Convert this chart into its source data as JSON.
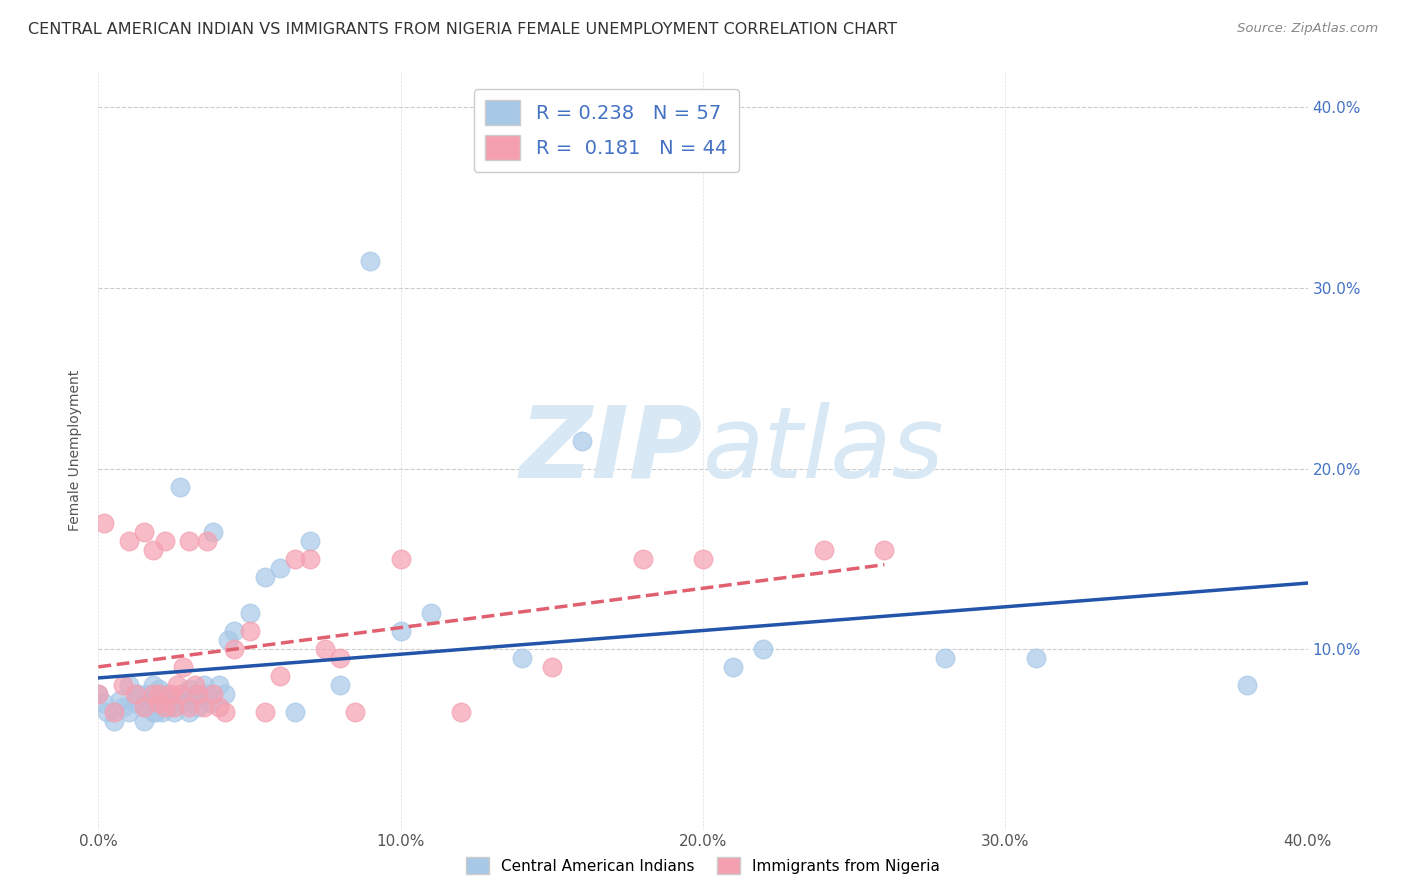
{
  "title": "CENTRAL AMERICAN INDIAN VS IMMIGRANTS FROM NIGERIA FEMALE UNEMPLOYMENT CORRELATION CHART",
  "source": "Source: ZipAtlas.com",
  "ylabel": "Female Unemployment",
  "xlim": [
    0.0,
    0.4
  ],
  "ylim": [
    0.0,
    0.42
  ],
  "x_ticks": [
    0.0,
    0.1,
    0.2,
    0.3,
    0.4
  ],
  "y_ticks": [
    0.1,
    0.2,
    0.3,
    0.4
  ],
  "x_tick_labels": [
    "0.0%",
    "10.0%",
    "20.0%",
    "30.0%",
    "40.0%"
  ],
  "y_tick_labels": [
    "10.0%",
    "20.0%",
    "30.0%",
    "40.0%"
  ],
  "legend1_R": "0.238",
  "legend1_N": "57",
  "legend2_R": "0.181",
  "legend2_N": "44",
  "blue_color": "#A8C8E8",
  "pink_color": "#F4A0B0",
  "blue_line_color": "#2255AA",
  "pink_line_color": "#E06070",
  "watermark_color": "#D8E8F4",
  "legend1_label": "Central American Indians",
  "legend2_label": "Immigrants from Nigeria",
  "blue_scatter_x": [
    0.0,
    0.002,
    0.003,
    0.005,
    0.007,
    0.008,
    0.01,
    0.01,
    0.012,
    0.013,
    0.015,
    0.015,
    0.016,
    0.017,
    0.018,
    0.018,
    0.019,
    0.02,
    0.02,
    0.021,
    0.022,
    0.022,
    0.023,
    0.024,
    0.025,
    0.026,
    0.027,
    0.028,
    0.03,
    0.03,
    0.031,
    0.032,
    0.033,
    0.035,
    0.036,
    0.037,
    0.038,
    0.04,
    0.042,
    0.043,
    0.045,
    0.05,
    0.055,
    0.06,
    0.065,
    0.07,
    0.08,
    0.09,
    0.1,
    0.11,
    0.14,
    0.16,
    0.21,
    0.22,
    0.28,
    0.31,
    0.38
  ],
  "blue_scatter_y": [
    0.075,
    0.07,
    0.065,
    0.06,
    0.072,
    0.068,
    0.08,
    0.065,
    0.07,
    0.075,
    0.06,
    0.068,
    0.075,
    0.072,
    0.065,
    0.08,
    0.065,
    0.07,
    0.078,
    0.065,
    0.07,
    0.075,
    0.068,
    0.07,
    0.065,
    0.072,
    0.19,
    0.07,
    0.065,
    0.078,
    0.072,
    0.075,
    0.068,
    0.08,
    0.075,
    0.07,
    0.165,
    0.08,
    0.075,
    0.105,
    0.11,
    0.12,
    0.14,
    0.145,
    0.065,
    0.16,
    0.08,
    0.315,
    0.11,
    0.12,
    0.095,
    0.215,
    0.09,
    0.1,
    0.095,
    0.095,
    0.08
  ],
  "pink_scatter_x": [
    0.0,
    0.002,
    0.005,
    0.008,
    0.01,
    0.012,
    0.015,
    0.015,
    0.018,
    0.018,
    0.02,
    0.02,
    0.022,
    0.022,
    0.024,
    0.025,
    0.026,
    0.027,
    0.028,
    0.03,
    0.03,
    0.032,
    0.033,
    0.035,
    0.036,
    0.038,
    0.04,
    0.042,
    0.045,
    0.05,
    0.055,
    0.06,
    0.065,
    0.07,
    0.075,
    0.08,
    0.085,
    0.1,
    0.12,
    0.15,
    0.18,
    0.2,
    0.24,
    0.26
  ],
  "pink_scatter_y": [
    0.075,
    0.17,
    0.065,
    0.08,
    0.16,
    0.075,
    0.068,
    0.165,
    0.075,
    0.155,
    0.07,
    0.075,
    0.068,
    0.16,
    0.075,
    0.068,
    0.08,
    0.075,
    0.09,
    0.068,
    0.16,
    0.08,
    0.075,
    0.068,
    0.16,
    0.075,
    0.068,
    0.065,
    0.1,
    0.11,
    0.065,
    0.085,
    0.15,
    0.15,
    0.1,
    0.095,
    0.065,
    0.15,
    0.065,
    0.09,
    0.15,
    0.15,
    0.155,
    0.155
  ],
  "title_fontsize": 11.5,
  "axis_fontsize": 10,
  "tick_fontsize": 11
}
